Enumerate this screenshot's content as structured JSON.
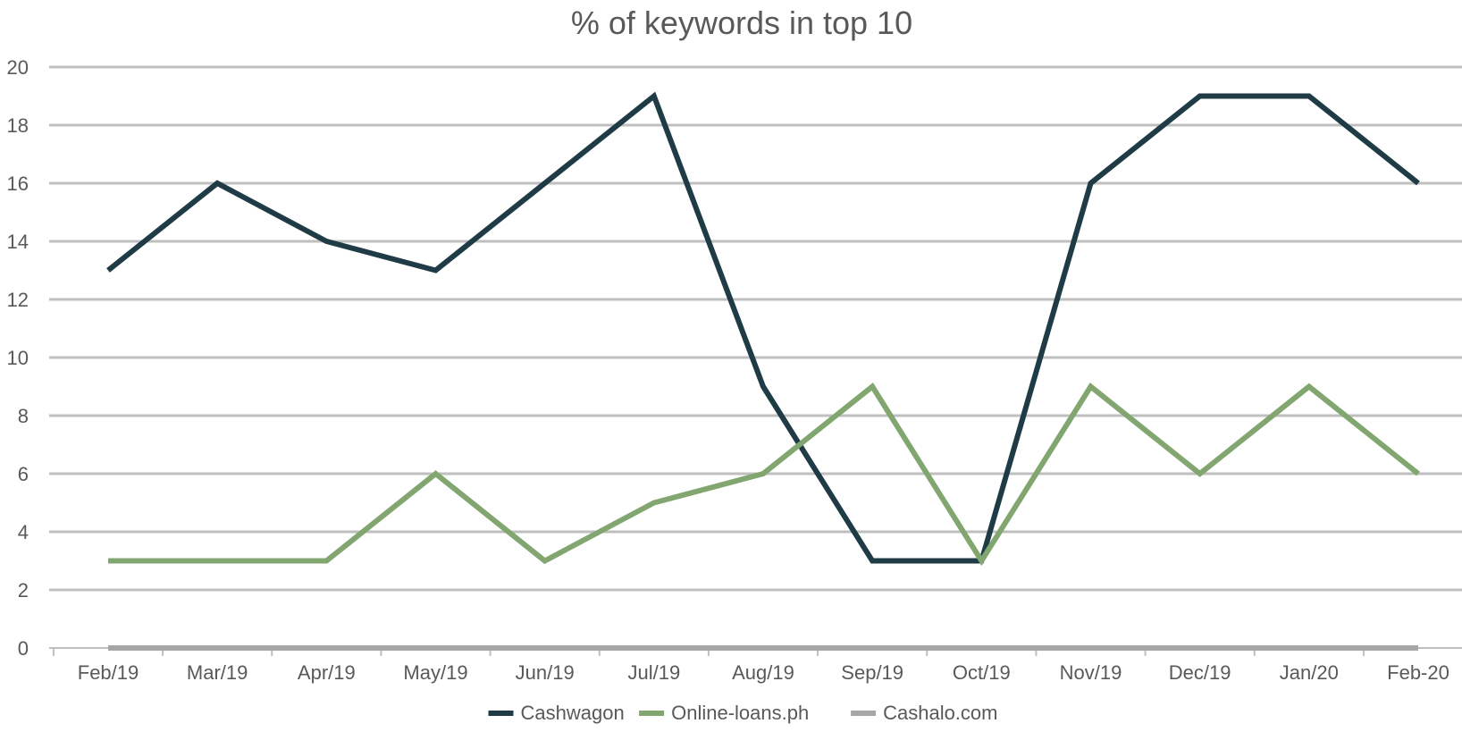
{
  "chart_data": {
    "type": "line",
    "title": "% of keywords in top 10",
    "xlabel": "",
    "ylabel": "",
    "categories": [
      "Feb/19",
      "Mar/19",
      "Apr/19",
      "May/19",
      "Jun/19",
      "Jul/19",
      "Aug/19",
      "Sep/19",
      "Oct/19",
      "Nov/19",
      "Dec/19",
      "Jan/20",
      "Feb-20"
    ],
    "ylim": [
      0,
      20
    ],
    "yticks": [
      "0",
      "2",
      "4",
      "6",
      "8",
      "10",
      "12",
      "14",
      "16",
      "18",
      "20"
    ],
    "grid": true,
    "legend_position": "bottom",
    "series": [
      {
        "name": "Cashwagon",
        "color": "#1f3b45",
        "values": [
          13,
          16,
          14,
          13,
          16,
          19,
          9,
          3,
          3,
          16,
          19,
          19,
          16
        ]
      },
      {
        "name": "Online-loans.ph",
        "color": "#82a66f",
        "values": [
          3,
          3,
          3,
          6,
          3,
          5,
          6,
          9,
          3,
          9,
          6,
          9,
          6
        ]
      },
      {
        "name": "Cashalo.com",
        "color": "#a6a6a6",
        "values": [
          0,
          0,
          0,
          0,
          0,
          0,
          0,
          0,
          0,
          0,
          0,
          0,
          0
        ]
      }
    ]
  }
}
